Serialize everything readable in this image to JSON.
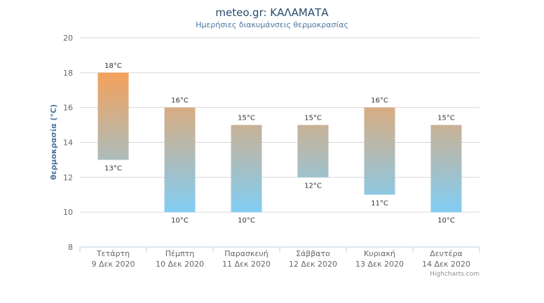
{
  "chart_data": {
    "type": "columnrange",
    "title": "meteo.gr: ΚΑΛΑΜΑΤΑ",
    "subtitle": "Ημερήσιες διακυμάνσεις θερμοκρασίας",
    "ylabel": "θερμοκρασία (°C)",
    "ylim": [
      8,
      20
    ],
    "yticks": [
      "8",
      "10",
      "12",
      "14",
      "16",
      "18",
      "20"
    ],
    "grid": true,
    "categories": [
      [
        "Τετάρτη",
        "9 Δεκ 2020"
      ],
      [
        "Πέμπτη",
        "10 Δεκ 2020"
      ],
      [
        "Παρασκευή",
        "11 Δεκ 2020"
      ],
      [
        "Σάββατο",
        "12 Δεκ 2020"
      ],
      [
        "Κυριακή",
        "13 Δεκ 2020"
      ],
      [
        "Δευτέρα",
        "14 Δεκ 2020"
      ]
    ],
    "low": [
      13,
      10,
      10,
      12,
      11,
      10
    ],
    "high": [
      18,
      16,
      15,
      15,
      16,
      15
    ],
    "low_labels": [
      "13°C",
      "10°C",
      "10°C",
      "12°C",
      "11°C",
      "10°C"
    ],
    "high_labels": [
      "18°C",
      "16°C",
      "15°C",
      "15°C",
      "16°C",
      "15°C"
    ],
    "colors": {
      "top": "#f4a15c",
      "bottom": "#81cdf4",
      "grid": "#d8d8d8",
      "axis": "#c0d0e0"
    }
  },
  "credits": "Highcharts.com"
}
